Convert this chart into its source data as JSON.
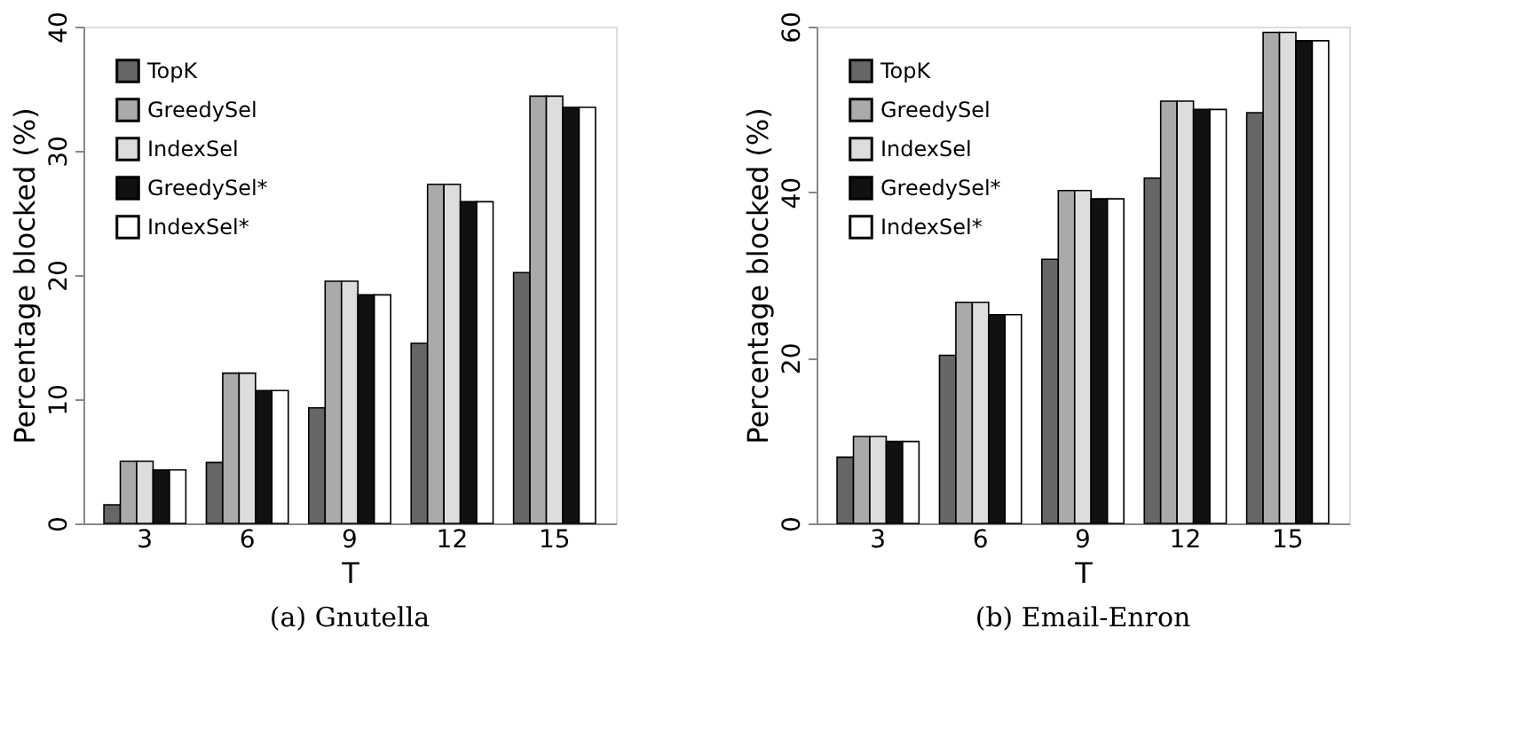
{
  "chart_data": [
    {
      "type": "bar",
      "title": "(a) Gnutella",
      "xlabel": "T",
      "ylabel": "Percentage blocked (%)",
      "categories": [
        "3",
        "6",
        "9",
        "12",
        "15"
      ],
      "ylim": [
        0,
        40
      ],
      "yticks": [
        0,
        10,
        20,
        30,
        40
      ],
      "grid": false,
      "legend": "top left",
      "series": [
        {
          "name": "TopK",
          "color": "#666666",
          "values": [
            1.5,
            4.9,
            9.3,
            14.5,
            20.2
          ]
        },
        {
          "name": "GreedySel",
          "color": "#aaaaaa",
          "values": [
            5.0,
            12.1,
            19.5,
            27.3,
            34.4
          ]
        },
        {
          "name": "IndexSel",
          "color": "#dddddd",
          "values": [
            5.0,
            12.1,
            19.5,
            27.3,
            34.4
          ]
        },
        {
          "name": "GreedySel*",
          "color": "#111111",
          "values": [
            4.3,
            10.7,
            18.4,
            25.9,
            33.5
          ]
        },
        {
          "name": "IndexSel*",
          "color": "#ffffff",
          "values": [
            4.3,
            10.7,
            18.4,
            25.9,
            33.5
          ]
        }
      ]
    },
    {
      "type": "bar",
      "title": "(b) Email-Enron",
      "xlabel": "T",
      "ylabel": "Percentage blocked (%)",
      "categories": [
        "3",
        "6",
        "9",
        "12",
        "15"
      ],
      "ylim": [
        0,
        60
      ],
      "yticks": [
        0,
        20,
        40,
        60
      ],
      "grid": false,
      "legend": "top left",
      "series": [
        {
          "name": "TopK",
          "color": "#666666",
          "values": [
            8.0,
            20.3,
            31.9,
            41.7,
            49.6
          ]
        },
        {
          "name": "GreedySel",
          "color": "#aaaaaa",
          "values": [
            10.5,
            26.7,
            40.2,
            51.0,
            59.3
          ]
        },
        {
          "name": "IndexSel",
          "color": "#dddddd",
          "values": [
            10.5,
            26.7,
            40.2,
            51.0,
            59.3
          ]
        },
        {
          "name": "GreedySel*",
          "color": "#111111",
          "values": [
            9.9,
            25.2,
            39.2,
            50.0,
            58.3
          ]
        },
        {
          "name": "IndexSel*",
          "color": "#ffffff",
          "values": [
            9.9,
            25.2,
            39.2,
            50.0,
            58.3
          ]
        }
      ]
    }
  ]
}
